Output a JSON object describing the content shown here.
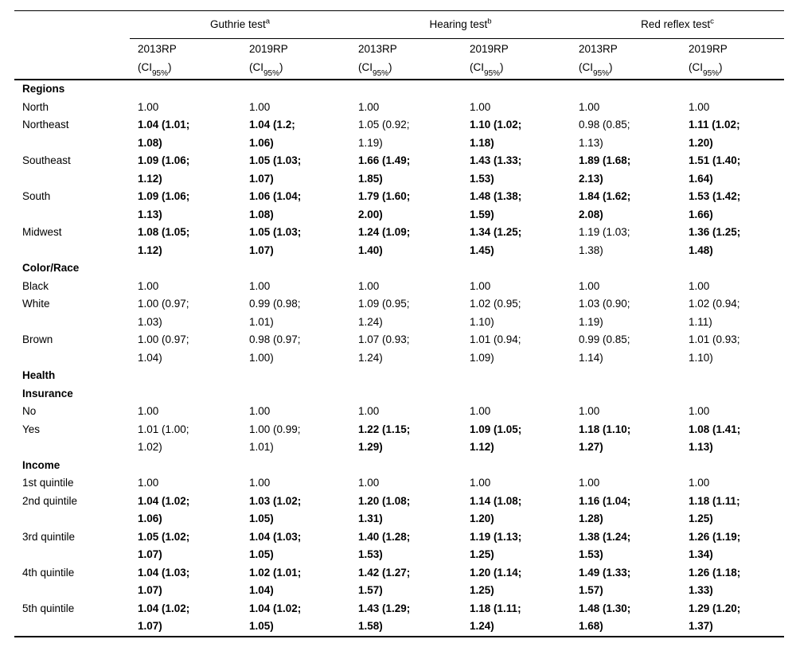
{
  "table": {
    "col_groups": [
      {
        "label": "Guthrie test",
        "sup": "a"
      },
      {
        "label": "Hearing test",
        "sup": "b"
      },
      {
        "label": "Red reflex test",
        "sup": "c"
      }
    ],
    "subcols": {
      "year1": "2013RP",
      "year2": "2019RP",
      "ci_pre": "(CI",
      "ci_sub": "95%",
      "ci_post": ")"
    },
    "sections": [
      {
        "header": "Regions",
        "rows": [
          {
            "label": "North",
            "cells": [
              {
                "t": "1.00",
                "b": false
              },
              {
                "t": "1.00",
                "b": false
              },
              {
                "t": "1.00",
                "b": false
              },
              {
                "t": "1.00",
                "b": false
              },
              {
                "t": "1.00",
                "b": false
              },
              {
                "t": "1.00",
                "b": false
              }
            ]
          },
          {
            "label": "Northeast",
            "cells": [
              {
                "t": "1.04 (1.01;\n1.08)",
                "b": true
              },
              {
                "t": "1.04 (1.2;\n1.06)",
                "b": true
              },
              {
                "t": "1.05 (0.92;\n1.19)",
                "b": false
              },
              {
                "t": "1.10 (1.02;\n1.18)",
                "b": true
              },
              {
                "t": "0.98 (0.85;\n1.13)",
                "b": false
              },
              {
                "t": "1.11 (1.02;\n1.20)",
                "b": true
              }
            ]
          },
          {
            "label": "Southeast",
            "cells": [
              {
                "t": "1.09 (1.06;\n1.12)",
                "b": true
              },
              {
                "t": "1.05 (1.03;\n1.07)",
                "b": true
              },
              {
                "t": "1.66 (1.49;\n1.85)",
                "b": true
              },
              {
                "t": "1.43 (1.33;\n1.53)",
                "b": true
              },
              {
                "t": "1.89 (1.68;\n2.13)",
                "b": true
              },
              {
                "t": "1.51 (1.40;\n1.64)",
                "b": true
              }
            ]
          },
          {
            "label": "South",
            "cells": [
              {
                "t": "1.09 (1.06;\n1.13)",
                "b": true
              },
              {
                "t": "1.06 (1.04;\n1.08)",
                "b": true
              },
              {
                "t": "1.79 (1.60;\n2.00)",
                "b": true
              },
              {
                "t": "1.48 (1.38;\n1.59)",
                "b": true
              },
              {
                "t": "1.84 (1.62;\n2.08)",
                "b": true
              },
              {
                "t": "1.53 (1.42;\n1.66)",
                "b": true
              }
            ]
          },
          {
            "label": "Midwest",
            "cells": [
              {
                "t": "1.08 (1.05;\n1.12)",
                "b": true
              },
              {
                "t": "1.05 (1.03;\n1.07)",
                "b": true
              },
              {
                "t": "1.24 (1.09;\n1.40)",
                "b": true
              },
              {
                "t": "1.34 (1.25;\n1.45)",
                "b": true
              },
              {
                "t": "1.19 (1.03;\n1.38)",
                "b": false
              },
              {
                "t": "1.36 (1.25;\n1.48)",
                "b": true
              }
            ]
          }
        ]
      },
      {
        "header": "Color/Race",
        "rows": [
          {
            "label": "Black",
            "cells": [
              {
                "t": "1.00",
                "b": false
              },
              {
                "t": "1.00",
                "b": false
              },
              {
                "t": "1.00",
                "b": false
              },
              {
                "t": "1.00",
                "b": false
              },
              {
                "t": "1.00",
                "b": false
              },
              {
                "t": "1.00",
                "b": false
              }
            ]
          },
          {
            "label": "White",
            "cells": [
              {
                "t": "1.00 (0.97;\n1.03)",
                "b": false
              },
              {
                "t": "0.99 (0.98;\n1.01)",
                "b": false
              },
              {
                "t": "1.09 (0.95;\n1.24)",
                "b": false
              },
              {
                "t": "1.02 (0.95;\n1.10)",
                "b": false
              },
              {
                "t": "1.03 (0.90;\n1.19)",
                "b": false
              },
              {
                "t": "1.02 (0.94;\n1.11)",
                "b": false
              }
            ]
          },
          {
            "label": "Brown",
            "cells": [
              {
                "t": "1.00 (0.97;\n1.04)",
                "b": false
              },
              {
                "t": "0.98 (0.97;\n1.00)",
                "b": false
              },
              {
                "t": "1.07 (0.93;\n1.24)",
                "b": false
              },
              {
                "t": "1.01 (0.94;\n1.09)",
                "b": false
              },
              {
                "t": "0.99 (0.85;\n1.14)",
                "b": false
              },
              {
                "t": "1.01 (0.93;\n1.10)",
                "b": false
              }
            ]
          }
        ]
      },
      {
        "header": "Health\nInsurance",
        "rows": [
          {
            "label": "No",
            "cells": [
              {
                "t": "1.00",
                "b": false
              },
              {
                "t": "1.00",
                "b": false
              },
              {
                "t": "1.00",
                "b": false
              },
              {
                "t": "1.00",
                "b": false
              },
              {
                "t": "1.00",
                "b": false
              },
              {
                "t": "1.00",
                "b": false
              }
            ]
          },
          {
            "label": "Yes",
            "cells": [
              {
                "t": "1.01 (1.00;\n1.02)",
                "b": false
              },
              {
                "t": "1.00 (0.99;\n1.01)",
                "b": false
              },
              {
                "t": "1.22 (1.15;\n1.29)",
                "b": true
              },
              {
                "t": "1.09 (1.05;\n1.12)",
                "b": true
              },
              {
                "t": "1.18 (1.10;\n1.27)",
                "b": true
              },
              {
                "t": "1.08 (1.41;\n1.13)",
                "b": true
              }
            ]
          }
        ]
      },
      {
        "header": "Income",
        "rows": [
          {
            "label": "1st quintile",
            "cells": [
              {
                "t": "1.00",
                "b": false
              },
              {
                "t": "1.00",
                "b": false
              },
              {
                "t": "1.00",
                "b": false
              },
              {
                "t": "1.00",
                "b": false
              },
              {
                "t": "1.00",
                "b": false
              },
              {
                "t": "1.00",
                "b": false
              }
            ]
          },
          {
            "label": "2nd quintile",
            "cells": [
              {
                "t": "1.04 (1.02;\n1.06)",
                "b": true
              },
              {
                "t": "1.03 (1.02;\n1.05)",
                "b": true
              },
              {
                "t": "1.20 (1.08;\n1.31)",
                "b": true
              },
              {
                "t": "1.14 (1.08;\n1.20)",
                "b": true
              },
              {
                "t": "1.16 (1.04;\n1.28)",
                "b": true
              },
              {
                "t": "1.18 (1.11;\n1.25)",
                "b": true
              }
            ]
          },
          {
            "label": "3rd quintile",
            "cells": [
              {
                "t": "1.05 (1.02;\n1.07)",
                "b": true
              },
              {
                "t": "1.04 (1.03;\n1.05)",
                "b": true
              },
              {
                "t": "1.40 (1.28;\n1.53)",
                "b": true
              },
              {
                "t": "1.19 (1.13;\n1.25)",
                "b": true
              },
              {
                "t": "1.38 (1.24;\n1.53)",
                "b": true
              },
              {
                "t": "1.26 (1.19;\n1.34)",
                "b": true
              }
            ]
          },
          {
            "label": "4th quintile",
            "cells": [
              {
                "t": "1.04 (1.03;\n1.07)",
                "b": true
              },
              {
                "t": "1.02 (1.01;\n1.04)",
                "b": true
              },
              {
                "t": "1.42 (1.27;\n1.57)",
                "b": true
              },
              {
                "t": "1.20 (1.14;\n1.25)",
                "b": true
              },
              {
                "t": "1.49 (1.33;\n1.57)",
                "b": true
              },
              {
                "t": "1.26 (1.18;\n1.33)",
                "b": true
              }
            ]
          },
          {
            "label": "5th quintile",
            "cells": [
              {
                "t": "1.04 (1.02;\n1.07)",
                "b": true
              },
              {
                "t": "1.04 (1.02;\n1.05)",
                "b": true
              },
              {
                "t": "1.43 (1.29;\n1.58)",
                "b": true
              },
              {
                "t": "1.18 (1.11;\n1.24)",
                "b": true
              },
              {
                "t": "1.48 (1.30;\n1.68)",
                "b": true
              },
              {
                "t": "1.29 (1.20;\n1.37)",
                "b": true
              }
            ]
          }
        ]
      }
    ]
  }
}
